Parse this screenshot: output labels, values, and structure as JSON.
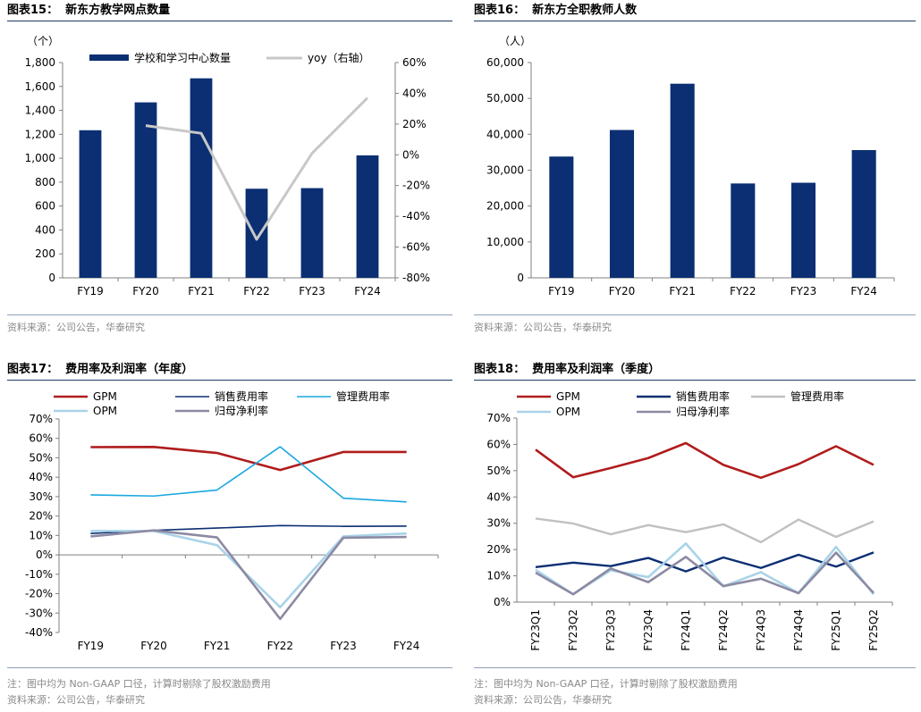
{
  "chart_data": [
    {
      "type": "bar",
      "fig_label": "图表15：",
      "title": "新东方教学网点数量",
      "unit_left": "（个）",
      "categories": [
        "FY19",
        "FY20",
        "FY21",
        "FY22",
        "FY23",
        "FY24"
      ],
      "series": [
        {
          "name": "学校和学习中心数量",
          "axis": "left",
          "kind": "bar",
          "color": "#0b2f72",
          "values": [
            1234,
            1467,
            1668,
            745,
            750,
            1024
          ]
        },
        {
          "name": "yoy（右轴）",
          "axis": "right",
          "kind": "line",
          "color": "#c8c8c8",
          "values": [
            null,
            19,
            14,
            -55,
            1,
            37
          ]
        }
      ],
      "ylim_left": [
        0,
        1800
      ],
      "yticks_left": [
        "0",
        "200",
        "400",
        "600",
        "800",
        "1,000",
        "1,200",
        "1,400",
        "1,600",
        "1,800"
      ],
      "ylim_right": [
        -80,
        60
      ],
      "yticks_right": [
        "-80%",
        "-60%",
        "-40%",
        "-20%",
        "0%",
        "20%",
        "40%",
        "60%"
      ],
      "legend": "top",
      "source": "资料来源：公司公告，华泰研究"
    },
    {
      "type": "bar",
      "fig_label": "图表16：",
      "title": "新东方全职教师人数",
      "unit_left": "（人）",
      "categories": [
        "FY19",
        "FY20",
        "FY21",
        "FY22",
        "FY23",
        "FY24"
      ],
      "series": [
        {
          "name": "",
          "kind": "bar",
          "color": "#0b2f72",
          "values": [
            33800,
            41200,
            54100,
            26300,
            26500,
            35600
          ]
        }
      ],
      "ylim": [
        0,
        60000
      ],
      "yticks": [
        "0",
        "10,000",
        "20,000",
        "30,000",
        "40,000",
        "50,000",
        "60,000"
      ],
      "source": "资料来源：公司公告，华泰研究"
    },
    {
      "type": "line",
      "fig_label": "图表17：",
      "title": "费用率及利润率（年度）",
      "categories": [
        "FY19",
        "FY20",
        "FY21",
        "FY22",
        "FY23",
        "FY24"
      ],
      "series": [
        {
          "name": "GPM",
          "color": "#b01c1c",
          "width": 2.6,
          "values": [
            55.5,
            55.6,
            52.5,
            43.7,
            53.0,
            53.0
          ]
        },
        {
          "name": "销售费用率",
          "color": "#0b2f72",
          "width": 1.6,
          "values": [
            11.0,
            12.6,
            13.8,
            15.1,
            14.7,
            14.8
          ]
        },
        {
          "name": "管理费用率",
          "color": "#1aa7e0",
          "width": 1.6,
          "values": [
            30.9,
            30.3,
            33.4,
            55.7,
            29.2,
            27.3
          ]
        },
        {
          "name": "OPM",
          "color": "#a9d3e8",
          "width": 2.6,
          "values": [
            12.3,
            12.3,
            5.0,
            -27.0,
            9.5,
            11.0
          ]
        },
        {
          "name": "归母净利率",
          "color": "#8c8aa3",
          "width": 2.6,
          "values": [
            9.5,
            12.6,
            9.0,
            -33.0,
            8.8,
            9.2
          ]
        }
      ],
      "ylim": [
        -40,
        70
      ],
      "yticks": [
        "-40%",
        "-30%",
        "-20%",
        "-10%",
        "0%",
        "10%",
        "20%",
        "30%",
        "40%",
        "50%",
        "60%",
        "70%"
      ],
      "legend": "top",
      "note": "注：图中均为 Non-GAAP 口径，计算时剔除了股权激励费用",
      "source": "资料来源：公司公告，华泰研究"
    },
    {
      "type": "line",
      "fig_label": "图表18：",
      "title": "费用率及利润率（季度）",
      "categories": [
        "FY23Q1",
        "FY23Q2",
        "FY23Q3",
        "FY23Q4",
        "FY24Q1",
        "FY24Q2",
        "FY24Q3",
        "FY24Q4",
        "FY25Q1",
        "FY25Q2"
      ],
      "series": [
        {
          "name": "GPM",
          "color": "#b01c1c",
          "width": 2.6,
          "values": [
            58.0,
            47.5,
            51.0,
            54.8,
            60.5,
            52.2,
            47.3,
            52.5,
            59.3,
            52.2
          ]
        },
        {
          "name": "销售费用率",
          "color": "#0b2f72",
          "width": 2.4,
          "values": [
            13.3,
            15.0,
            13.7,
            16.8,
            11.7,
            17.0,
            13.0,
            18.0,
            13.5,
            18.9
          ]
        },
        {
          "name": "管理费用率",
          "color": "#c0c0c0",
          "width": 2.4,
          "values": [
            31.8,
            29.9,
            25.8,
            29.3,
            26.6,
            29.6,
            22.8,
            31.4,
            24.8,
            30.7
          ]
        },
        {
          "name": "OPM",
          "color": "#a9d3e8",
          "width": 2.6,
          "values": [
            12.3,
            3.0,
            12.1,
            9.5,
            22.3,
            6.0,
            11.4,
            3.4,
            21.0,
            3.0
          ]
        },
        {
          "name": "归母净利率",
          "color": "#8c8aa3",
          "width": 2.6,
          "values": [
            11.2,
            3.0,
            12.8,
            7.6,
            17.2,
            6.1,
            8.9,
            3.4,
            18.8,
            3.5
          ]
        }
      ],
      "ylim": [
        0,
        70
      ],
      "yticks": [
        "0%",
        "10%",
        "20%",
        "30%",
        "40%",
        "50%",
        "60%",
        "70%"
      ],
      "legend": "top",
      "note": "注：图中均为 Non-GAAP 口径，计算时剔除了股权激励费用",
      "source": "资料来源：公司公告，华泰研究"
    }
  ]
}
